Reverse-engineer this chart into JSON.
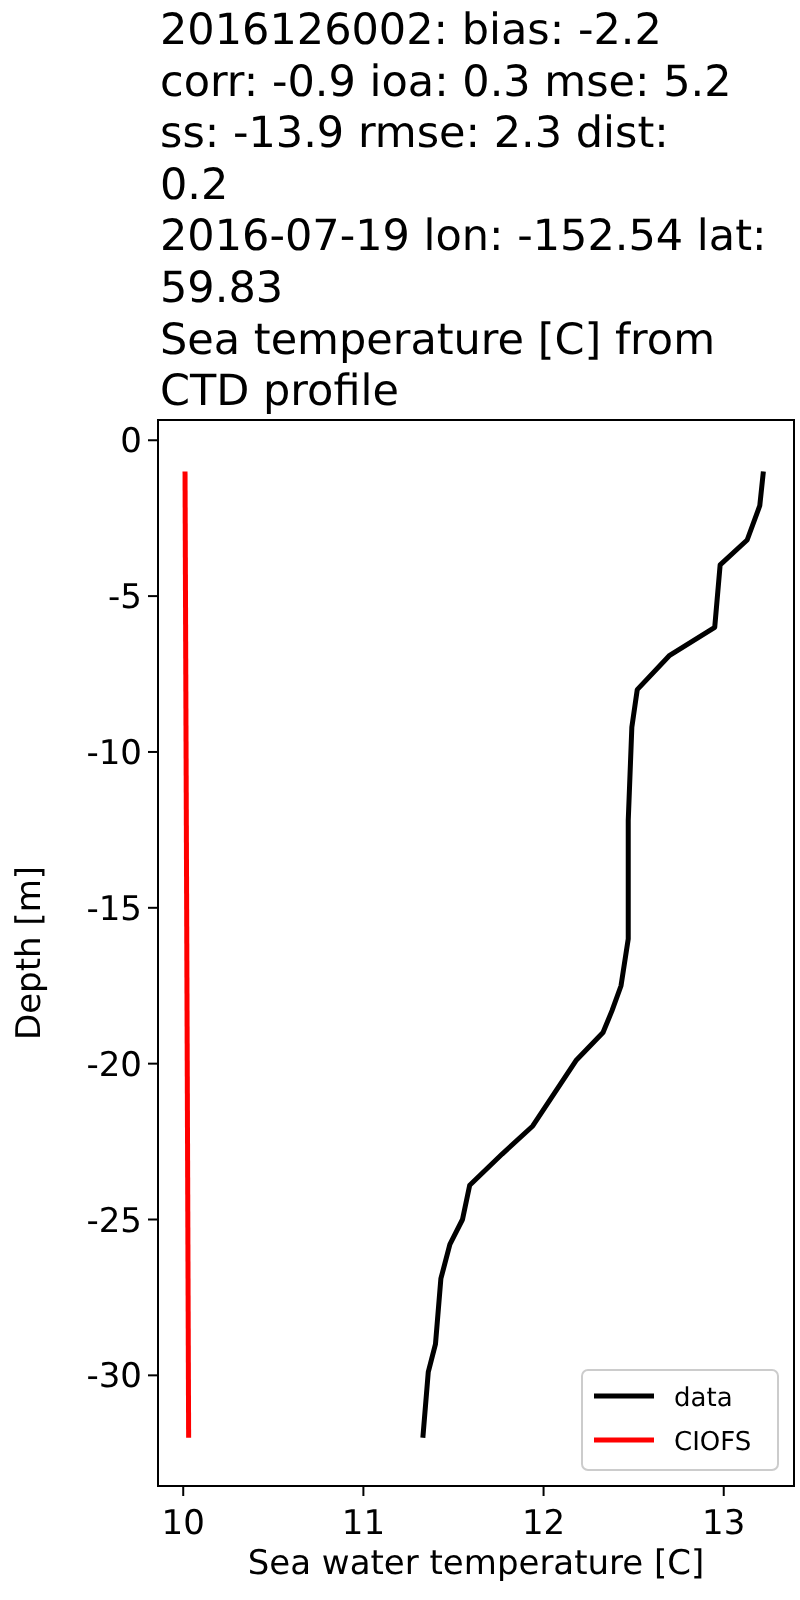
{
  "chart_data": {
    "type": "line",
    "title": "2016126002: bias: -2.2\ncorr: -0.9  ioa: 0.3  mse: 5.2\nss: -13.9  rmse: 2.3  dist:\n0.2\n2016-07-19 lon: -152.54 lat:\n59.83\nSea temperature [C] from\nCTD profile",
    "xlabel": "Sea water temperature [C]",
    "ylabel": "Depth [m]",
    "xlim": [
      9.86,
      13.39
    ],
    "ylim": [
      -33.55,
      0.65
    ],
    "xticks": [
      10,
      11,
      12,
      13
    ],
    "yticks": [
      0,
      -5,
      -10,
      -15,
      -20,
      -25,
      -30
    ],
    "legend": "bottom right",
    "grid": false,
    "series": [
      {
        "name": "data",
        "color": "#000000",
        "x": [
          13.22,
          13.2,
          13.13,
          12.98,
          12.95,
          12.7,
          12.52,
          12.49,
          12.47,
          12.47,
          12.43,
          12.38,
          12.33,
          12.18,
          11.94,
          11.77,
          11.59,
          11.55,
          11.48,
          11.43,
          11.4,
          11.36,
          11.33
        ],
        "values": [
          -1,
          -2.1,
          -3.2,
          -4,
          -6,
          -6.9,
          -8,
          -9.2,
          -12.2,
          -16,
          -17.5,
          -18.3,
          -19,
          -19.9,
          -22,
          -22.9,
          -23.9,
          -25,
          -25.8,
          -26.9,
          -29,
          -29.9,
          -32
        ]
      },
      {
        "name": "CIOFS",
        "color": "#ff0000",
        "x": [
          10.01,
          10.03
        ],
        "values": [
          -1,
          -32
        ]
      }
    ]
  }
}
